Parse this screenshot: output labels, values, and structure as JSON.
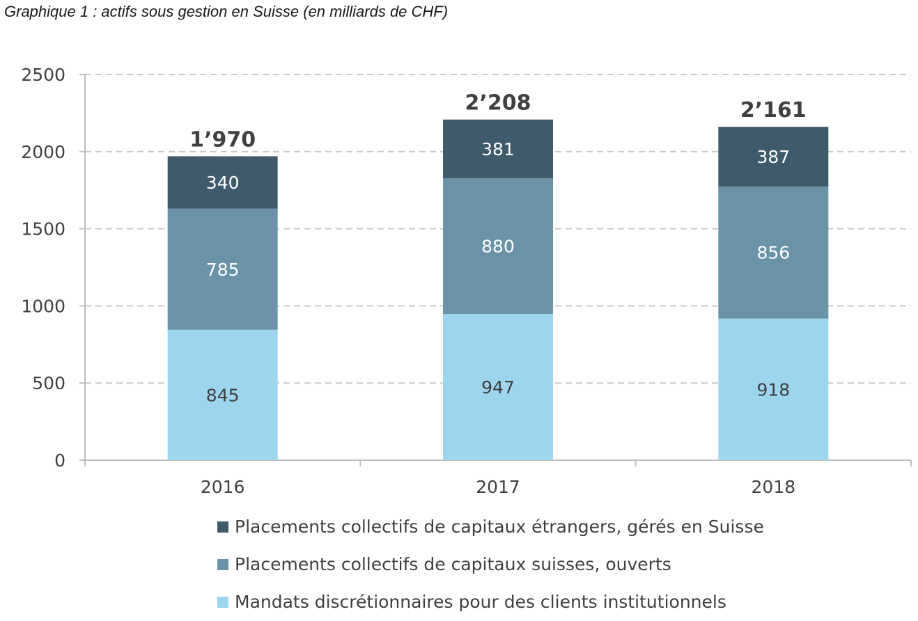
{
  "title": "Graphique 1 : actifs sous gestion en Suisse (en milliards de CHF)",
  "chart_data": {
    "type": "bar",
    "stacked": true,
    "categories": [
      "2016",
      "2017",
      "2018"
    ],
    "series": [
      {
        "name": "Mandats discrétionnaires pour des clients institutionnels",
        "values": [
          845,
          947,
          918
        ],
        "color": "#9DD4EE",
        "labels": [
          "845",
          "947",
          "918"
        ]
      },
      {
        "name": "Placements collectifs de capitaux suisses, ouverts",
        "values": [
          785,
          880,
          856
        ],
        "color": "#6A93A8",
        "labels": [
          "785",
          "880",
          "856"
        ]
      },
      {
        "name": "Placements collectifs de capitaux étrangers, gérés en Suisse",
        "values": [
          340,
          381,
          387
        ],
        "color": "#3F5B6B",
        "labels": [
          "340",
          "381",
          "387"
        ]
      }
    ],
    "totals": [
      1970,
      2208,
      2161
    ],
    "total_labels": [
      "1’970",
      "2’208",
      "2’161"
    ],
    "yticks": [
      "0",
      "500",
      "1000",
      "1500",
      "2000",
      "2500"
    ],
    "ylim": [
      0,
      2500
    ],
    "grid": true,
    "legend_position": "bottom"
  }
}
